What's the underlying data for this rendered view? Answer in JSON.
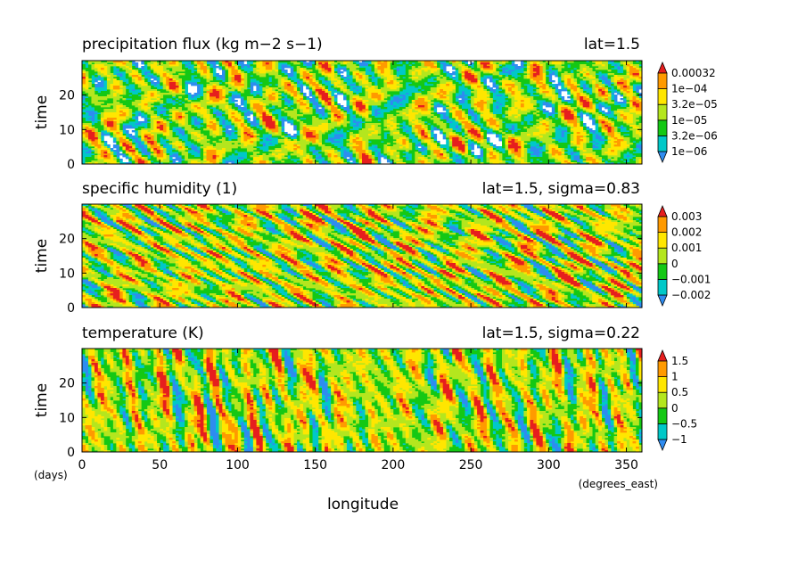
{
  "chart_data": {
    "type": "heatmap",
    "shared_xaxis": {
      "label": "longitude",
      "units": "(degrees_east)",
      "range": [
        0,
        360
      ],
      "ticks": [
        0,
        50,
        100,
        150,
        200,
        250,
        300,
        350
      ]
    },
    "shared_yaxis": {
      "label": "time",
      "units": "(days)",
      "range": [
        0,
        30
      ],
      "ticks": [
        0,
        10,
        20
      ]
    },
    "palette": [
      "#2e8cf0",
      "#00c8c8",
      "#14c814",
      "#b4e61e",
      "#ffe600",
      "#ff9a00",
      "#e61e1e"
    ],
    "panels": [
      {
        "title": "precipitation flux (kg m−2 s−1)",
        "annotation": "lat=1.5",
        "colorbar": {
          "labels": [
            "1e−06",
            "3.2e−06",
            "1e−05",
            "3.2e−05",
            "1e−04",
            "0.00032"
          ],
          "values": [
            1e-06,
            3.2e-06,
            1e-05,
            3.2e-05,
            0.0001,
            0.00032
          ],
          "scale": "log",
          "colors": [
            "#2e8cf0",
            "#00c8c8",
            "#14c814",
            "#b4e61e",
            "#ffe600",
            "#ff9a00",
            "#e61e1e"
          ],
          "below_min_color": "#ffffff"
        },
        "field": "precipitation flux",
        "pattern": "patchy"
      },
      {
        "title": "specific humidity (1)",
        "annotation": "lat=1.5, sigma=0.83",
        "colorbar": {
          "labels": [
            "−0.002",
            "−0.001",
            "0",
            "0.001",
            "0.002",
            "0.003"
          ],
          "values": [
            -0.002,
            -0.001,
            0,
            0.001,
            0.002,
            0.003
          ],
          "scale": "linear",
          "colors": [
            "#2e8cf0",
            "#00c8c8",
            "#14c814",
            "#b4e61e",
            "#ffe600",
            "#ff9a00",
            "#e61e1e"
          ]
        },
        "field": "specific humidity",
        "pattern": "diagonal"
      },
      {
        "title": "temperature (K)",
        "annotation": "lat=1.5, sigma=0.22",
        "colorbar": {
          "labels": [
            "−1",
            "−0.5",
            "0",
            "0.5",
            "1",
            "1.5"
          ],
          "values": [
            -1,
            -0.5,
            0,
            0.5,
            1,
            1.5
          ],
          "scale": "linear",
          "colors": [
            "#2e8cf0",
            "#00c8c8",
            "#14c814",
            "#b4e61e",
            "#ffe600",
            "#ff9a00",
            "#e61e1e"
          ]
        },
        "field": "temperature",
        "pattern": "streaky"
      }
    ]
  }
}
